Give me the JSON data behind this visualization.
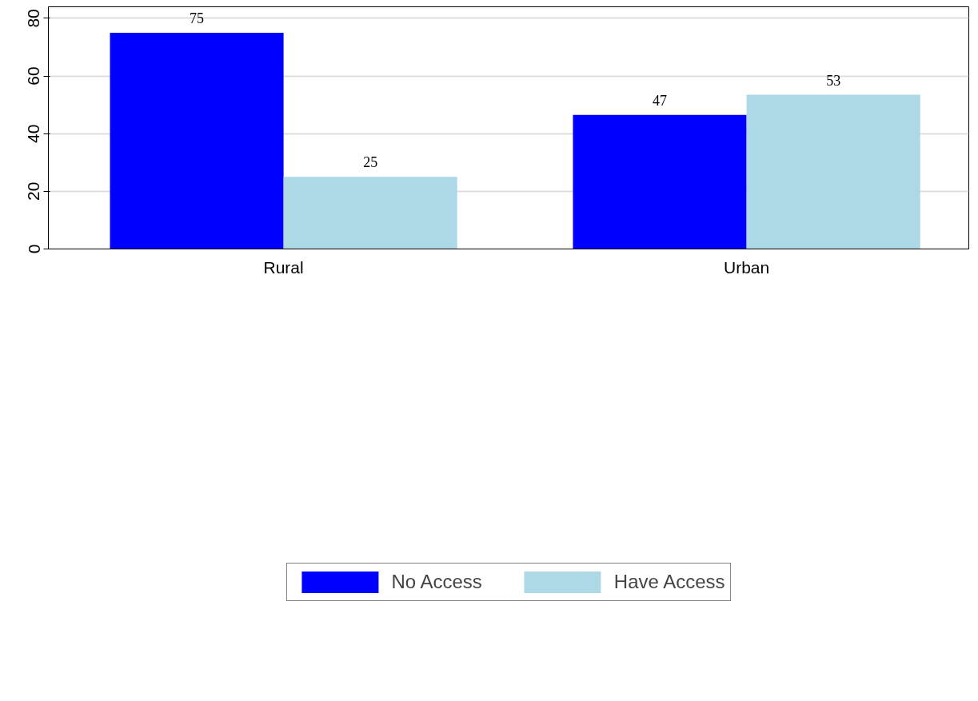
{
  "chart_data": {
    "type": "bar",
    "categories": [
      "Rural",
      "Urban"
    ],
    "series": [
      {
        "name": "No Access",
        "color": "#0000ff",
        "values": [
          75,
          46.5
        ],
        "value_labels": [
          "75",
          "47"
        ]
      },
      {
        "name": "Have Access",
        "color": "#add8e6",
        "values": [
          25,
          53.5
        ],
        "value_labels": [
          "25",
          "53"
        ]
      }
    ],
    "ylim": [
      0,
      84
    ],
    "yticks": [
      0,
      20,
      40,
      60,
      80
    ],
    "grid": "y",
    "legend": "bottom"
  }
}
